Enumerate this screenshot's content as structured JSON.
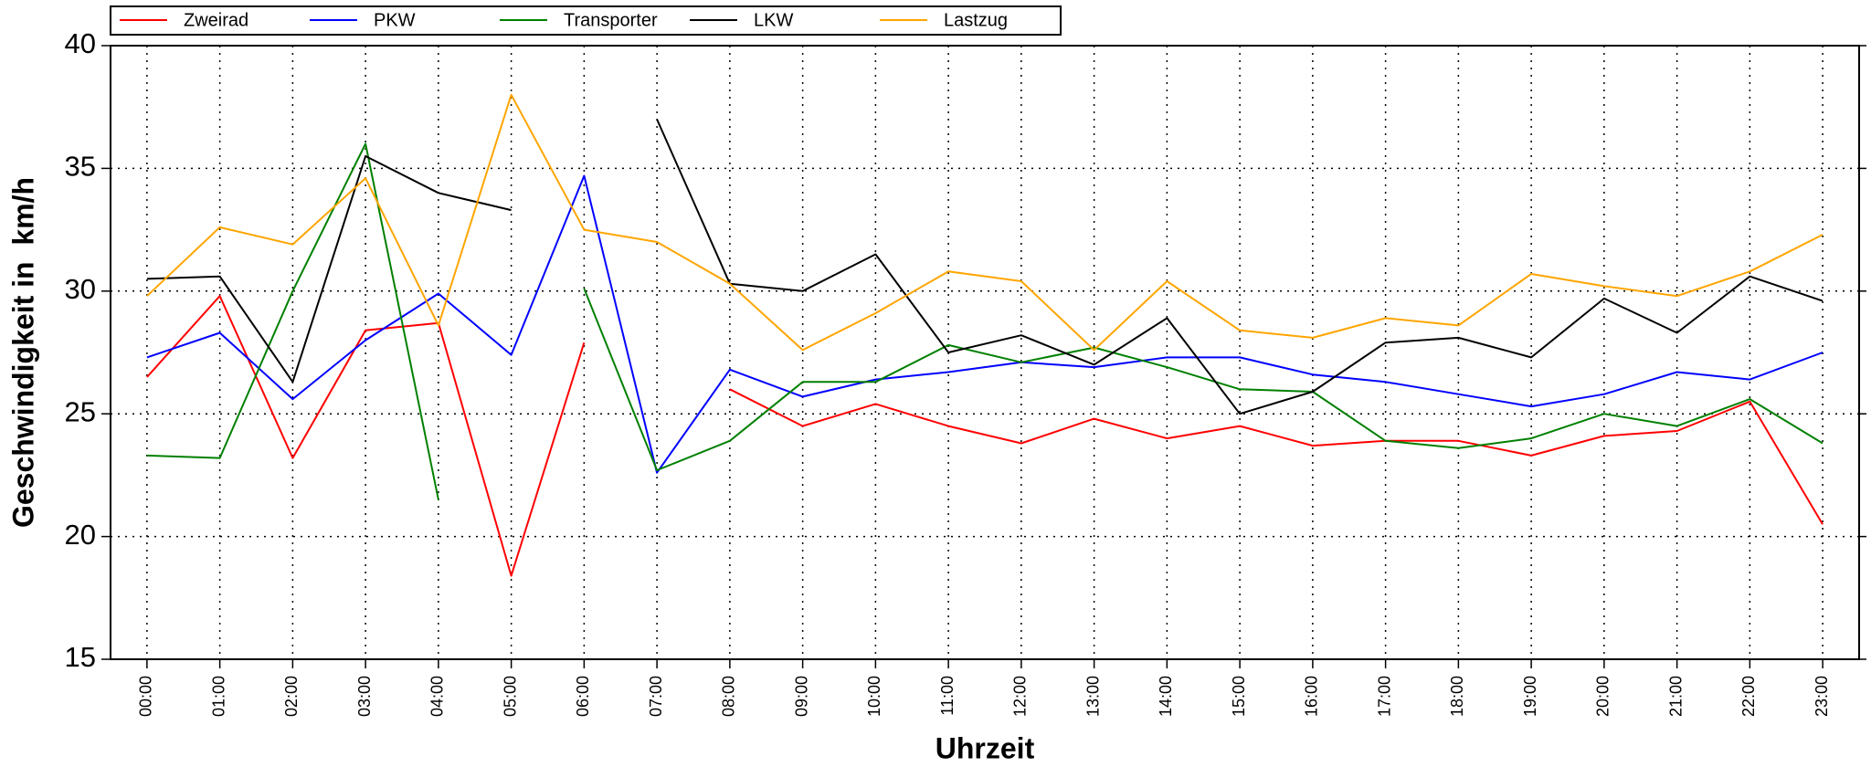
{
  "chart_data": {
    "type": "line",
    "x_label": "Uhrzeit",
    "y_label": "Geschwindigkeit in  km/h",
    "categories": [
      "00:00",
      "01:00",
      "02:00",
      "03:00",
      "04:00",
      "05:00",
      "06:00",
      "07:00",
      "08:00",
      "09:00",
      "10:00",
      "11:00",
      "12:00",
      "13:00",
      "14:00",
      "15:00",
      "16:00",
      "17:00",
      "18:00",
      "19:00",
      "20:00",
      "21:00",
      "22:00",
      "23:00"
    ],
    "series": [
      {
        "name": "Zweirad",
        "color": "#ff0000",
        "values": [
          26.5,
          29.8,
          23.2,
          28.4,
          28.7,
          18.4,
          27.9,
          null,
          26.0,
          24.5,
          25.4,
          24.5,
          23.8,
          24.8,
          24.0,
          24.5,
          23.7,
          23.9,
          23.9,
          23.3,
          24.1,
          24.3,
          25.5,
          20.5
        ]
      },
      {
        "name": "PKW",
        "color": "#0000ff",
        "values": [
          27.3,
          28.3,
          25.6,
          28.0,
          29.9,
          27.4,
          34.7,
          22.6,
          26.8,
          25.7,
          26.4,
          26.7,
          27.1,
          26.9,
          27.3,
          27.3,
          26.6,
          26.3,
          25.8,
          25.3,
          25.8,
          26.7,
          26.4,
          27.5
        ]
      },
      {
        "name": "Transporter",
        "color": "#008000",
        "values": [
          23.3,
          23.2,
          30.0,
          36.0,
          21.5,
          null,
          30.1,
          22.7,
          23.9,
          26.3,
          26.3,
          27.8,
          27.1,
          27.7,
          26.9,
          26.0,
          25.9,
          23.9,
          23.6,
          24.0,
          25.0,
          24.5,
          25.6,
          23.8
        ]
      },
      {
        "name": "LKW",
        "color": "#000000",
        "values": [
          30.5,
          30.6,
          26.3,
          35.5,
          34.0,
          33.3,
          null,
          37.0,
          30.3,
          30.0,
          31.5,
          27.5,
          28.2,
          27.0,
          28.9,
          25.0,
          25.9,
          27.9,
          28.1,
          27.3,
          29.7,
          28.3,
          30.6,
          29.6
        ]
      },
      {
        "name": "Lastzug",
        "color": "#ffa500",
        "values": [
          29.8,
          32.6,
          31.9,
          34.6,
          28.6,
          38.0,
          32.5,
          32.0,
          30.3,
          27.6,
          29.1,
          30.8,
          30.4,
          27.6,
          30.4,
          28.4,
          28.1,
          28.9,
          28.6,
          30.7,
          30.2,
          29.8,
          30.8,
          32.3
        ]
      }
    ],
    "ylim": [
      15,
      40
    ],
    "yticks": [
      15,
      20,
      25,
      30,
      35,
      40
    ],
    "grid": true,
    "legend": "top"
  }
}
